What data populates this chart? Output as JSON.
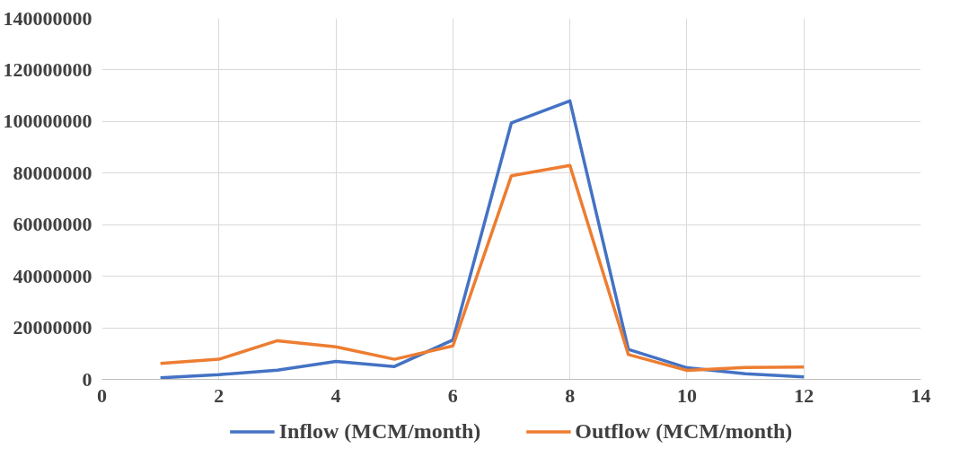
{
  "chart_data": {
    "type": "line",
    "x": [
      1,
      2,
      3,
      4,
      5,
      6,
      7,
      8,
      9,
      10,
      11,
      12
    ],
    "series": [
      {
        "name": "Inflow (MCM/month)",
        "color": "#4472c4",
        "values": [
          600000,
          1800000,
          3600000,
          7000000,
          5000000,
          15300000,
          99500000,
          108000000,
          11600000,
          4500000,
          2200000,
          1000000
        ]
      },
      {
        "name": "Outflow (MCM/month)",
        "color": "#ed7d31",
        "values": [
          6200000,
          7800000,
          15000000,
          12600000,
          7800000,
          13000000,
          79000000,
          83000000,
          9600000,
          3500000,
          4600000,
          4800000
        ]
      }
    ],
    "xlim": [
      0,
      14
    ],
    "xticks": [
      0,
      2,
      4,
      6,
      8,
      10,
      12,
      14
    ],
    "ylim": [
      0,
      140000000
    ],
    "yticks": [
      0,
      20000000,
      40000000,
      60000000,
      80000000,
      100000000,
      120000000,
      140000000
    ],
    "grid": true,
    "legend": "bottom",
    "line_style": "solid",
    "marker": "none"
  }
}
